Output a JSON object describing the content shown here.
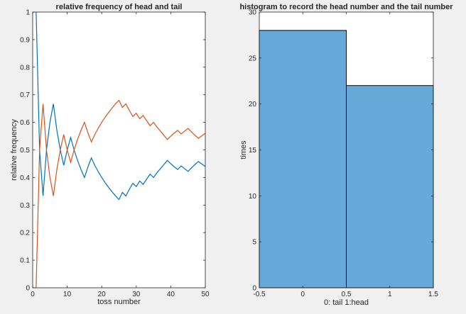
{
  "figure": {
    "background": "#f0f0f0"
  },
  "chart_data": [
    {
      "type": "line",
      "title": "relative frequency of head and tail",
      "xlabel": "toss number",
      "ylabel": "relative frequency",
      "xlim": [
        0,
        50
      ],
      "ylim": [
        0,
        1
      ],
      "xticks": [
        0,
        10,
        20,
        30,
        40,
        50
      ],
      "yticks": [
        0,
        0.1,
        0.2,
        0.3,
        0.4,
        0.5,
        0.6,
        0.7,
        0.8,
        0.9,
        1
      ],
      "grid": false,
      "x": [
        1,
        2,
        3,
        4,
        5,
        6,
        7,
        8,
        9,
        10,
        11,
        12,
        13,
        14,
        15,
        16,
        17,
        18,
        19,
        20,
        21,
        22,
        23,
        24,
        25,
        26,
        27,
        28,
        29,
        30,
        31,
        32,
        33,
        34,
        35,
        36,
        37,
        38,
        39,
        40,
        41,
        42,
        43,
        44,
        45,
        46,
        47,
        48,
        49,
        50
      ],
      "series": [
        {
          "color": "#0072bd",
          "values": [
            1.0,
            0.5,
            0.333,
            0.5,
            0.6,
            0.667,
            0.571,
            0.5,
            0.444,
            0.5,
            0.545,
            0.5,
            0.462,
            0.429,
            0.4,
            0.438,
            0.471,
            0.444,
            0.421,
            0.4,
            0.381,
            0.364,
            0.348,
            0.333,
            0.32,
            0.346,
            0.333,
            0.357,
            0.379,
            0.367,
            0.387,
            0.375,
            0.394,
            0.412,
            0.4,
            0.417,
            0.432,
            0.447,
            0.462,
            0.45,
            0.439,
            0.429,
            0.442,
            0.432,
            0.422,
            0.435,
            0.447,
            0.458,
            0.449,
            0.44
          ]
        },
        {
          "color": "#d95319",
          "values": [
            0.0,
            0.5,
            0.667,
            0.5,
            0.4,
            0.333,
            0.429,
            0.5,
            0.556,
            0.5,
            0.455,
            0.5,
            0.538,
            0.571,
            0.6,
            0.562,
            0.529,
            0.556,
            0.579,
            0.6,
            0.619,
            0.636,
            0.652,
            0.667,
            0.68,
            0.654,
            0.667,
            0.643,
            0.621,
            0.633,
            0.613,
            0.625,
            0.606,
            0.588,
            0.6,
            0.583,
            0.568,
            0.553,
            0.538,
            0.55,
            0.561,
            0.571,
            0.558,
            0.568,
            0.578,
            0.565,
            0.553,
            0.542,
            0.551,
            0.56
          ]
        }
      ]
    },
    {
      "type": "bar",
      "title": "histogram to record the head number and the tail number",
      "xlabel": "0: tail 1:head",
      "ylabel": "times",
      "xlim": [
        -0.5,
        1.5
      ],
      "ylim": [
        0,
        30
      ],
      "xticks": [
        -0.5,
        0,
        0.5,
        1,
        1.5
      ],
      "yticks": [
        0,
        5,
        10,
        15,
        20,
        25,
        30
      ],
      "grid": false,
      "color": "#66a9d8",
      "bins": [
        {
          "edges": [
            -0.5,
            0.5
          ],
          "value": 28
        },
        {
          "edges": [
            0.5,
            1.5
          ],
          "value": 22
        }
      ]
    }
  ]
}
